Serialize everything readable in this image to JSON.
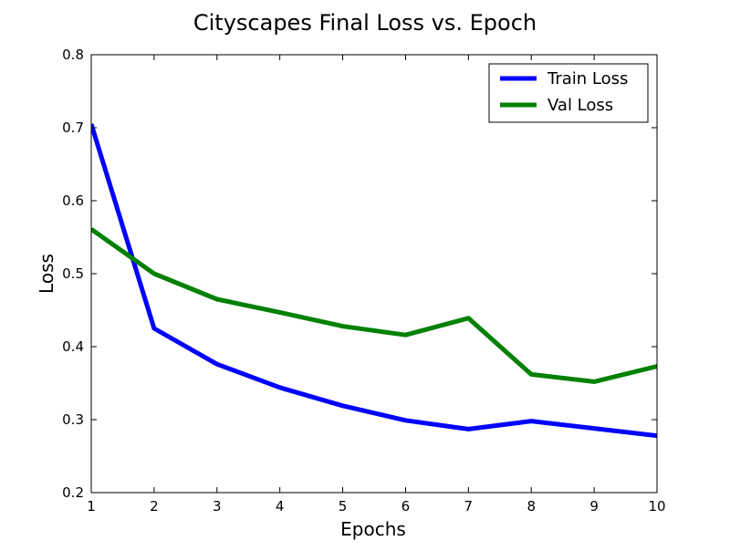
{
  "chart_data": {
    "type": "line",
    "title": "Cityscapes Final Loss vs. Epoch",
    "xlabel": "Epochs",
    "ylabel": "Loss",
    "x": [
      1,
      2,
      3,
      4,
      5,
      6,
      7,
      8,
      9,
      10
    ],
    "xlim": [
      1,
      10
    ],
    "ylim": [
      0.2,
      0.8
    ],
    "xticks": [
      "1",
      "2",
      "3",
      "4",
      "5",
      "6",
      "7",
      "8",
      "9",
      "10"
    ],
    "yticks": [
      "0.2",
      "0.3",
      "0.4",
      "0.5",
      "0.6",
      "0.7",
      "0.8"
    ],
    "grid": false,
    "legend_position": "top-right",
    "series": [
      {
        "name": "Train Loss",
        "color": "#0000ff",
        "values": [
          0.705,
          0.425,
          0.376,
          0.344,
          0.319,
          0.299,
          0.287,
          0.298,
          0.288,
          0.278
        ]
      },
      {
        "name": "Val Loss",
        "color": "#008000",
        "values": [
          0.561,
          0.5,
          0.465,
          0.447,
          0.428,
          0.416,
          0.439,
          0.362,
          0.352,
          0.373
        ]
      }
    ]
  }
}
